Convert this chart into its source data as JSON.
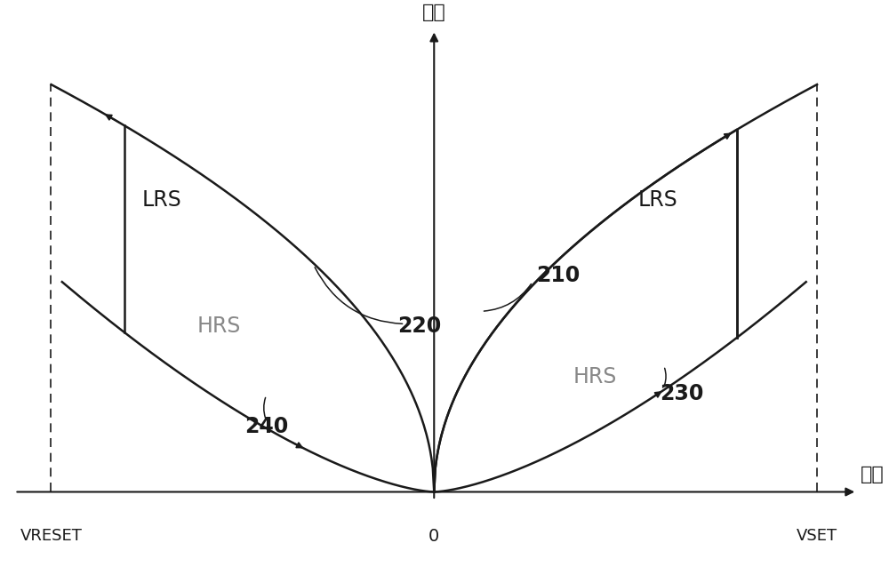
{
  "ylabel_top": "电流",
  "xlabel_right": "电压",
  "x_label_left": "VRESET",
  "x_label_center": "0",
  "x_label_right": "VSET",
  "background_color": "#ffffff",
  "line_color": "#1a1a1a",
  "text_color": "#1a1a1a",
  "label_LRS_left": "LRS",
  "label_HRS_left": "HRS",
  "label_LRS_right": "LRS",
  "label_HRS_right": "HRS",
  "label_210": "210",
  "label_220": "220",
  "label_230": "230",
  "label_240": "240",
  "figsize": [
    10.0,
    6.38
  ],
  "dpi": 100
}
